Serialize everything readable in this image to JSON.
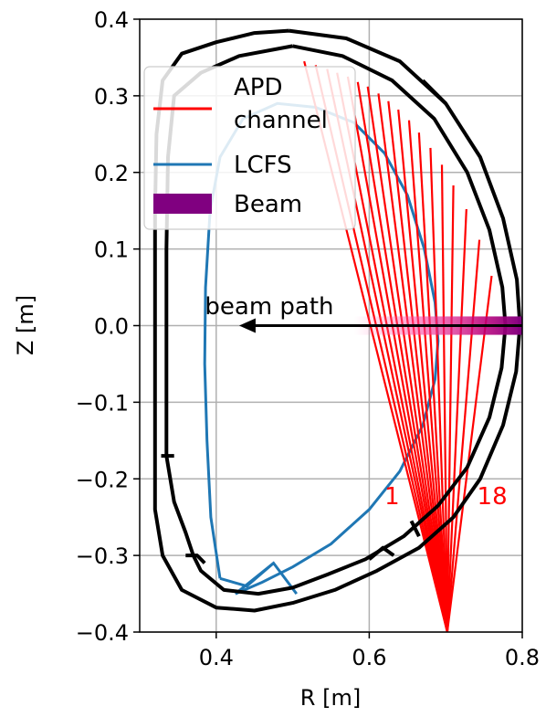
{
  "chart_data": {
    "type": "line",
    "xlabel": "R [m]",
    "ylabel": "Z [m]",
    "xlim": [
      0.3,
      0.8
    ],
    "ylim": [
      -0.4,
      0.4
    ],
    "xticks": [
      "0.4",
      "0.6",
      "0.8"
    ],
    "xtick_values": [
      0.4,
      0.6,
      0.8
    ],
    "yticks": [
      "−0.4",
      "−0.3",
      "−0.2",
      "−0.1",
      "0.0",
      "0.1",
      "0.2",
      "0.3",
      "0.4"
    ],
    "ytick_values": [
      -0.4,
      -0.3,
      -0.2,
      -0.1,
      0.0,
      0.1,
      0.2,
      0.3,
      0.4
    ],
    "grid": true,
    "legend": {
      "placement": "upper-left",
      "entries": [
        {
          "label_line1": "APD",
          "label_line2": "channel",
          "color": "#ff0000",
          "kind": "line"
        },
        {
          "label_line1": "LCFS",
          "label_line2": "",
          "color": "#1f77b4",
          "kind": "line"
        },
        {
          "label_line1": "Beam",
          "label_line2": "",
          "color": "#800080",
          "kind": "patch"
        }
      ]
    },
    "apd_channels": {
      "color": "#ff0000",
      "origin": [
        0.702,
        -0.4
      ],
      "count": 18,
      "first_label": "1",
      "last_label": "18",
      "endpoints": [
        [
          0.515,
          0.345
        ],
        [
          0.53,
          0.34
        ],
        [
          0.545,
          0.335
        ],
        [
          0.558,
          0.33
        ],
        [
          0.572,
          0.325
        ],
        [
          0.585,
          0.318
        ],
        [
          0.598,
          0.312
        ],
        [
          0.612,
          0.303
        ],
        [
          0.625,
          0.293
        ],
        [
          0.638,
          0.282
        ],
        [
          0.652,
          0.268
        ],
        [
          0.665,
          0.252
        ],
        [
          0.68,
          0.232
        ],
        [
          0.695,
          0.21
        ],
        [
          0.71,
          0.183
        ],
        [
          0.727,
          0.152
        ],
        [
          0.744,
          0.112
        ],
        [
          0.76,
          0.065
        ]
      ]
    },
    "lcfs": {
      "color": "#1f77b4",
      "points": [
        [
          0.405,
          -0.33
        ],
        [
          0.393,
          -0.25
        ],
        [
          0.388,
          -0.15
        ],
        [
          0.385,
          -0.05
        ],
        [
          0.386,
          0.05
        ],
        [
          0.392,
          0.15
        ],
        [
          0.405,
          0.22
        ],
        [
          0.435,
          0.27
        ],
        [
          0.48,
          0.29
        ],
        [
          0.53,
          0.285
        ],
        [
          0.58,
          0.265
        ],
        [
          0.62,
          0.225
        ],
        [
          0.65,
          0.17
        ],
        [
          0.672,
          0.1
        ],
        [
          0.686,
          0.03
        ],
        [
          0.69,
          -0.02
        ],
        [
          0.686,
          -0.07
        ],
        [
          0.67,
          -0.13
        ],
        [
          0.64,
          -0.19
        ],
        [
          0.6,
          -0.24
        ],
        [
          0.55,
          -0.285
        ],
        [
          0.5,
          -0.315
        ],
        [
          0.46,
          -0.335
        ],
        [
          0.425,
          -0.35
        ]
      ],
      "legs": [
        [
          [
            0.405,
            -0.33
          ],
          [
            0.44,
            -0.34
          ],
          [
            0.475,
            -0.31
          ],
          [
            0.505,
            -0.35
          ]
        ],
        [
          [
            0.425,
            -0.35
          ],
          [
            0.475,
            -0.31
          ]
        ]
      ]
    },
    "wall": {
      "color": "#000000",
      "outer": [
        [
          0.495,
          0.385
        ],
        [
          0.57,
          0.375
        ],
        [
          0.64,
          0.345
        ],
        [
          0.7,
          0.29
        ],
        [
          0.745,
          0.22
        ],
        [
          0.775,
          0.14
        ],
        [
          0.793,
          0.06
        ],
        [
          0.797,
          0.0
        ],
        [
          0.792,
          -0.06
        ],
        [
          0.775,
          -0.13
        ],
        [
          0.745,
          -0.2
        ],
        [
          0.71,
          -0.25
        ],
        [
          0.665,
          -0.29
        ],
        [
          0.61,
          -0.32
        ],
        [
          0.555,
          -0.345
        ],
        [
          0.5,
          -0.362
        ],
        [
          0.45,
          -0.372
        ],
        [
          0.4,
          -0.368
        ],
        [
          0.355,
          -0.345
        ],
        [
          0.33,
          -0.3
        ],
        [
          0.32,
          -0.24
        ],
        [
          0.32,
          -0.15
        ],
        [
          0.32,
          0.0
        ],
        [
          0.32,
          0.15
        ],
        [
          0.322,
          0.25
        ],
        [
          0.33,
          0.32
        ],
        [
          0.355,
          0.355
        ],
        [
          0.4,
          0.37
        ],
        [
          0.45,
          0.382
        ],
        [
          0.495,
          0.385
        ]
      ],
      "inner": [
        [
          0.5,
          0.365
        ],
        [
          0.565,
          0.352
        ],
        [
          0.63,
          0.32
        ],
        [
          0.685,
          0.27
        ],
        [
          0.728,
          0.2
        ],
        [
          0.757,
          0.125
        ],
        [
          0.774,
          0.05
        ],
        [
          0.778,
          0.0
        ],
        [
          0.773,
          -0.055
        ],
        [
          0.757,
          -0.12
        ],
        [
          0.728,
          -0.185
        ],
        [
          0.69,
          -0.235
        ],
        [
          0.645,
          -0.275
        ],
        [
          0.595,
          -0.305
        ],
        [
          0.545,
          -0.325
        ],
        [
          0.5,
          -0.342
        ],
        [
          0.455,
          -0.35
        ],
        [
          0.41,
          -0.345
        ],
        [
          0.38,
          -0.32
        ],
        [
          0.37,
          -0.3
        ],
        [
          0.36,
          -0.27
        ],
        [
          0.345,
          -0.23
        ],
        [
          0.335,
          -0.17
        ],
        [
          0.335,
          -0.05
        ],
        [
          0.335,
          0.1
        ],
        [
          0.337,
          0.22
        ],
        [
          0.345,
          0.3
        ],
        [
          0.38,
          0.33
        ],
        [
          0.43,
          0.352
        ],
        [
          0.5,
          0.365
        ]
      ],
      "bumps": [
        [
          [
            0.36,
            -0.3
          ],
          [
            0.375,
            -0.3
          ],
          [
            0.385,
            -0.31
          ]
        ],
        [
          [
            0.6,
            -0.305
          ],
          [
            0.618,
            -0.29
          ],
          [
            0.632,
            -0.3
          ]
        ],
        [
          [
            0.67,
            0.32
          ],
          [
            0.7,
            0.29
          ]
        ],
        [
          [
            0.328,
            -0.17
          ],
          [
            0.345,
            -0.17
          ]
        ],
        [
          [
            0.655,
            -0.255
          ],
          [
            0.665,
            -0.275
          ]
        ]
      ]
    },
    "beam": {
      "color": "#800080",
      "glow_color": "#ff4da6",
      "z": 0.0,
      "r_start": 0.58,
      "r_end": 0.8,
      "half_height": 0.012
    },
    "beam_path": {
      "label": "beam path",
      "arrow_from": [
        0.8,
        0.0
      ],
      "arrow_to": [
        0.43,
        0.0
      ],
      "label_pos": [
        0.39,
        0.015
      ]
    }
  }
}
